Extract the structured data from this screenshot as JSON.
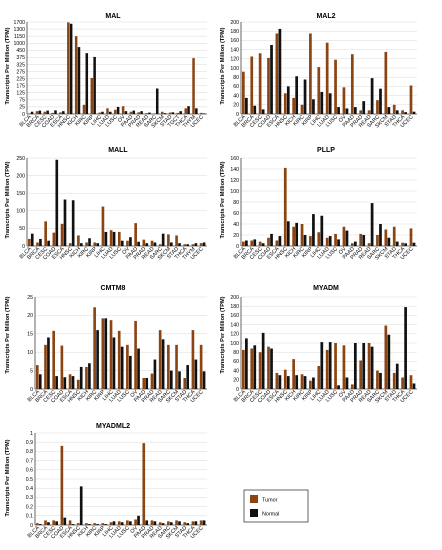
{
  "colors": {
    "tumor": "#8B4513",
    "normal": "#111111",
    "grid": "#cfcfcf",
    "axis": "#000000"
  },
  "legend": {
    "items": [
      "Tumor",
      "Normal"
    ]
  },
  "chart_data": [
    {
      "type": "bar",
      "title": "MAL",
      "ylabel": "Transcripts Per Million (TPM)",
      "ylim": [
        0,
        1700
      ],
      "axis_break": true,
      "yticks": [
        0,
        25,
        75,
        125,
        175,
        225,
        275,
        325,
        375,
        450,
        1000,
        1150,
        1300,
        1700
      ],
      "categories": [
        "BLCA",
        "BRCA",
        "CESC",
        "COAD",
        "ESCA",
        "HNSC",
        "KICH",
        "KIRC",
        "KIRP",
        "LIHC",
        "LUAD",
        "LUSC",
        "OV",
        "PAAD",
        "PRAD",
        "READ",
        "SARC",
        "SKCM",
        "STAD",
        "TGCT",
        "THCA",
        "THYM",
        "UCEC"
      ],
      "series": [
        {
          "name": "Tumor",
          "values": [
            2,
            10,
            8,
            4,
            6,
            1680,
            1150,
            40,
            230,
            5,
            20,
            15,
            30,
            8,
            6,
            3,
            2,
            8,
            5,
            4,
            20,
            370,
            4
          ]
        },
        {
          "name": "Normal",
          "values": [
            8,
            12,
            12,
            13,
            10,
            1600,
            700,
            420,
            380,
            8,
            8,
            25,
            10,
            12,
            10,
            5,
            155,
            3,
            6,
            10,
            30,
            20,
            2
          ]
        }
      ]
    },
    {
      "type": "bar",
      "title": "MAL2",
      "ylabel": "Transcripts Per Million (TPM)",
      "ylim": [
        0,
        200
      ],
      "yticks": [
        0,
        20,
        40,
        60,
        80,
        100,
        120,
        140,
        160,
        180,
        200
      ],
      "categories": [
        "BLCA",
        "BRCA",
        "CESC",
        "COAD",
        "ESCA",
        "HNSC",
        "KICH",
        "KIRC",
        "KIRP",
        "LIHC",
        "LUAD",
        "LUSC",
        "OV",
        "PAAD",
        "PRAD",
        "READ",
        "SARC",
        "SKCM",
        "STAD",
        "THCA",
        "UCEC"
      ],
      "series": [
        {
          "name": "Tumor",
          "values": [
            92,
            125,
            132,
            122,
            175,
            45,
            35,
            20,
            175,
            102,
            155,
            118,
            58,
            130,
            8,
            8,
            30,
            135,
            20,
            8,
            62
          ]
        },
        {
          "name": "Normal",
          "values": [
            35,
            18,
            10,
            150,
            185,
            60,
            82,
            75,
            32,
            48,
            45,
            15,
            12,
            15,
            28,
            78,
            55,
            15,
            8,
            4,
            5
          ]
        }
      ]
    },
    {
      "type": "bar",
      "title": "MALL",
      "ylabel": "Transcripts Per Million (TPM)",
      "ylim": [
        0,
        400
      ],
      "axis_break": true,
      "yticks": [
        0,
        50,
        100,
        150,
        200,
        250
      ],
      "categories": [
        "BLCA",
        "BRCA",
        "CESC",
        "COAD",
        "ESCA",
        "HNSC",
        "KICH",
        "KIRC",
        "KIRP",
        "LIHC",
        "LUAD",
        "LUSC",
        "OV",
        "PAAD",
        "PRAD",
        "READ",
        "SARC",
        "SKCM",
        "STAD",
        "THCA",
        "THYM",
        "UCEC"
      ],
      "series": [
        {
          "name": "Tumor",
          "values": [
            20,
            10,
            70,
            38,
            63,
            8,
            30,
            10,
            10,
            112,
            45,
            40,
            15,
            65,
            18,
            15,
            5,
            33,
            30,
            5,
            5,
            8
          ]
        },
        {
          "name": "Normal",
          "values": [
            35,
            20,
            15,
            245,
            132,
            130,
            8,
            22,
            8,
            40,
            40,
            15,
            25,
            12,
            8,
            10,
            35,
            10,
            8,
            5,
            8,
            10
          ]
        }
      ]
    },
    {
      "type": "bar",
      "title": "PLLP",
      "ylabel": "Transcripts Per Million (TPM)",
      "ylim": [
        0,
        160
      ],
      "yticks": [
        0,
        20,
        40,
        60,
        80,
        100,
        120,
        140,
        160
      ],
      "categories": [
        "BLCA",
        "BRCA",
        "CESC",
        "COAD",
        "ESCA",
        "HNSC",
        "KICH",
        "KIRC",
        "KIRP",
        "LIHC",
        "LUAD",
        "LUSC",
        "OV",
        "PAAD",
        "PRAD",
        "READ",
        "SARC",
        "SKCM",
        "STAD",
        "THCA",
        "UCEC"
      ],
      "series": [
        {
          "name": "Tumor",
          "values": [
            8,
            10,
            8,
            15,
            10,
            142,
            35,
            40,
            18,
            25,
            15,
            22,
            35,
            5,
            22,
            5,
            20,
            30,
            35,
            6,
            32
          ]
        },
        {
          "name": "Normal",
          "values": [
            10,
            12,
            5,
            22,
            18,
            45,
            42,
            20,
            58,
            55,
            18,
            12,
            28,
            8,
            20,
            78,
            40,
            15,
            8,
            5,
            6
          ]
        }
      ]
    },
    {
      "type": "bar",
      "title": "CMTM8",
      "ylabel": "Transcripts Per Million (TPM)",
      "ylim": [
        0,
        25
      ],
      "yticks": [
        0,
        5,
        10,
        15,
        20,
        25
      ],
      "categories": [
        "BLCA",
        "BRCA",
        "CESC",
        "COAD",
        "ESCA",
        "HNSC",
        "KICH",
        "KIRC",
        "KIRP",
        "LIHC",
        "LUAD",
        "LUSC",
        "OV",
        "PAAD",
        "PRAD",
        "READ",
        "SARC",
        "SKCM",
        "STAD",
        "THCA",
        "UCEC"
      ],
      "series": [
        {
          "name": "Tumor",
          "values": [
            6.5,
            12,
            15.8,
            11.8,
            4,
            2.5,
            6,
            22.2,
            19.2,
            18.7,
            15.8,
            12,
            18.5,
            3,
            4.2,
            16,
            12,
            12,
            3,
            16,
            12
          ]
        },
        {
          "name": "Normal",
          "values": [
            4,
            14,
            3.5,
            3.2,
            3.5,
            6,
            7,
            16,
            19.2,
            14,
            11.5,
            9,
            11,
            3,
            8,
            13.5,
            5,
            4.8,
            6.5,
            8,
            4.8
          ]
        }
      ]
    },
    {
      "type": "bar",
      "title": "MYADM",
      "ylabel": "Transcripts Per Million (TPM)",
      "ylim": [
        0,
        200
      ],
      "yticks": [
        0,
        20,
        40,
        60,
        80,
        100,
        120,
        140,
        160,
        180,
        200
      ],
      "categories": [
        "BLCA",
        "BRCA",
        "CESC",
        "COAD",
        "ESCA",
        "HNSC",
        "KICH",
        "KIRC",
        "KIRP",
        "LIHC",
        "LUAD",
        "LUSC",
        "OV",
        "PAAD",
        "PRAD",
        "READ",
        "SARC",
        "SKCM",
        "STAD",
        "THCA",
        "UCEC"
      ],
      "series": [
        {
          "name": "Tumor",
          "values": [
            85,
            88,
            80,
            92,
            35,
            42,
            65,
            32,
            18,
            50,
            85,
            100,
            95,
            10,
            62,
            100,
            40,
            138,
            35,
            25,
            30
          ]
        },
        {
          "name": "Normal",
          "values": [
            110,
            95,
            122,
            88,
            30,
            28,
            30,
            28,
            25,
            102,
            102,
            8,
            25,
            100,
            100,
            92,
            35,
            118,
            55,
            178,
            12
          ]
        }
      ]
    },
    {
      "type": "bar",
      "title": "MYADML2",
      "ylabel": "Transcripts Per Million (TPM)",
      "ylim": [
        0,
        1
      ],
      "yticks": [
        0,
        0.1,
        0.2,
        0.3,
        0.4,
        0.5,
        0.6,
        0.7,
        0.8,
        0.9,
        1
      ],
      "categories": [
        "BLCA",
        "BRCA",
        "CESC",
        "COAD",
        "ESCA",
        "HNSC",
        "KICH",
        "KIRC",
        "KIRP",
        "LIHC",
        "LUAD",
        "LUSC",
        "OV",
        "PAAD",
        "PRAD",
        "READ",
        "SARC",
        "SKCM",
        "STAD",
        "THCA",
        "UCEC"
      ],
      "series": [
        {
          "name": "Tumor",
          "values": [
            0.02,
            0.05,
            0.05,
            0.86,
            0.05,
            0.02,
            0.02,
            0.02,
            0.02,
            0.03,
            0.04,
            0.05,
            0.06,
            0.89,
            0.05,
            0.03,
            0.04,
            0.05,
            0.03,
            0.04,
            0.05
          ]
        },
        {
          "name": "Normal",
          "values": [
            0.01,
            0.03,
            0.04,
            0.08,
            0.01,
            0.42,
            0.01,
            0.01,
            0.01,
            0.04,
            0.03,
            0.04,
            0.1,
            0.05,
            0.04,
            0.02,
            0.03,
            0.04,
            0.02,
            0.04,
            0.05
          ]
        }
      ]
    }
  ]
}
